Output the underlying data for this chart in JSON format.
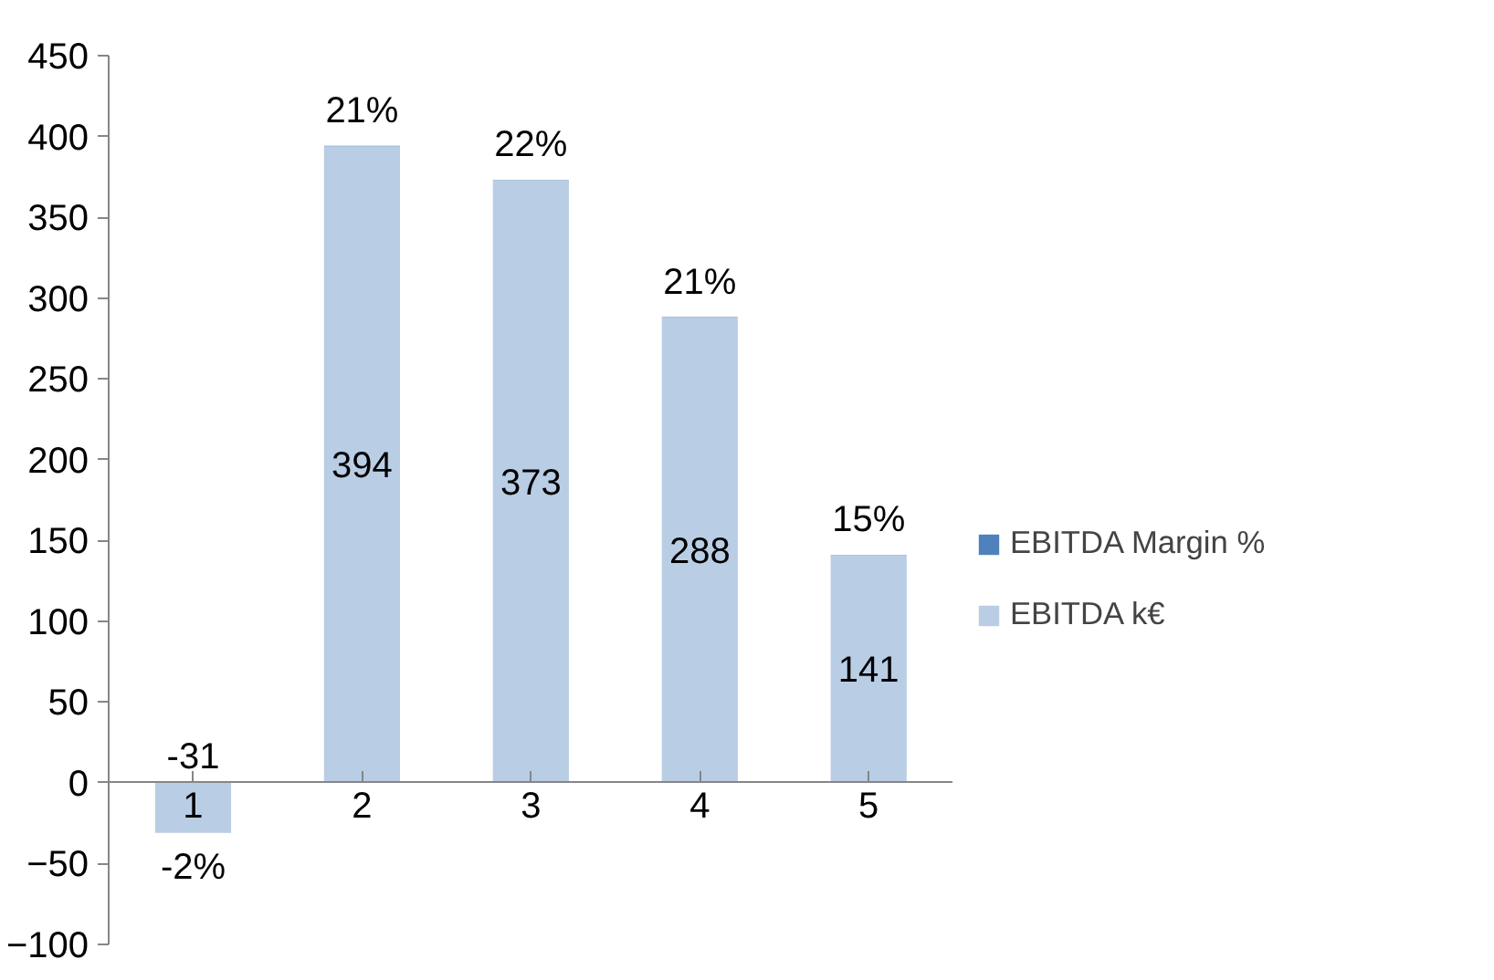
{
  "chart_data": {
    "type": "bar",
    "stacked": true,
    "categories": [
      "1",
      "2",
      "3",
      "4",
      "5"
    ],
    "series": [
      {
        "name": "EBITDA k€",
        "color": "#b9cde5",
        "values": [
          -31,
          394,
          373,
          288,
          141
        ],
        "value_labels": [
          "-31",
          "394",
          "373",
          "288",
          "141"
        ]
      },
      {
        "name": "EBITDA Margin %",
        "color": "#4f81bd",
        "values": [
          -0.02,
          0.21,
          0.22,
          0.21,
          0.15
        ],
        "value_labels": [
          "-2%",
          "21%",
          "22%",
          "21%",
          "15%"
        ]
      }
    ],
    "ylim": [
      -100,
      450
    ],
    "yticks": [
      -100,
      -50,
      0,
      50,
      100,
      150,
      200,
      250,
      300,
      350,
      400,
      450
    ],
    "grid": false,
    "legend": "right"
  }
}
